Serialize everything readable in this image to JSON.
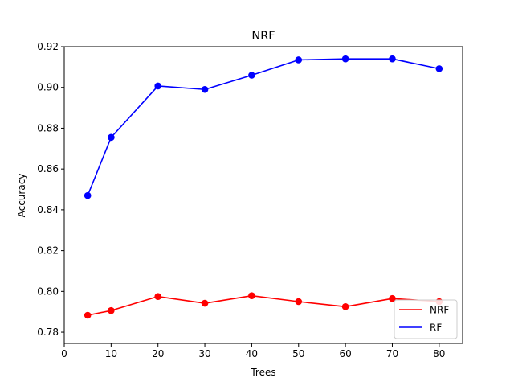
{
  "chart_data": {
    "type": "line",
    "title": "NRF",
    "xlabel": "Trees",
    "ylabel": "Accuracy",
    "x": [
      5,
      10,
      20,
      30,
      40,
      50,
      60,
      70,
      80
    ],
    "xlim": [
      0,
      85
    ],
    "ylim": [
      0.7745,
      0.92
    ],
    "xticks": [
      0,
      10,
      20,
      30,
      40,
      50,
      60,
      70,
      80
    ],
    "yticks": [
      0.78,
      0.8,
      0.82,
      0.84,
      0.86,
      0.88,
      0.9,
      0.92
    ],
    "xtick_labels": [
      "0",
      "10",
      "20",
      "30",
      "40",
      "50",
      "60",
      "70",
      "80"
    ],
    "ytick_labels": [
      "0.78",
      "0.80",
      "0.82",
      "0.84",
      "0.86",
      "0.88",
      "0.90",
      "0.92"
    ],
    "series": [
      {
        "name": "NRF",
        "color": "#ff0000",
        "values": [
          0.7883,
          0.7906,
          0.7975,
          0.7942,
          0.7979,
          0.795,
          0.7925,
          0.7965,
          0.795
        ]
      },
      {
        "name": "RF",
        "color": "#0000ff",
        "values": [
          0.847,
          0.8755,
          0.9007,
          0.899,
          0.906,
          0.9135,
          0.914,
          0.914,
          0.9092
        ]
      }
    ],
    "legend_position": "lower right",
    "grid": false
  }
}
